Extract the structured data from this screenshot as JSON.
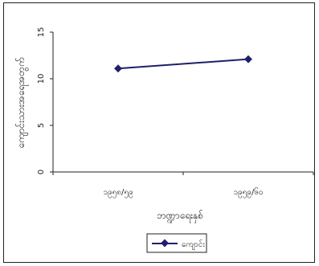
{
  "chart_data": {
    "type": "line",
    "title": "",
    "xlabel": "ဘဏ္ဍာရေးနှစ်",
    "ylabel": "ကျောင်းသားအရေအတွက်",
    "categories": [
      "၁၉၅၈/၅၉",
      "၁၉၅၉/၆၀"
    ],
    "series": [
      {
        "name": "ကျောင်း",
        "values": [
          11.1,
          12.1
        ],
        "color": "#1f1f6b"
      }
    ],
    "ylim": [
      0,
      15
    ],
    "yticks": [
      0,
      5,
      10,
      15
    ],
    "ytick_labels": [
      "0",
      "5",
      "10",
      "15"
    ],
    "grid": false,
    "legend": "bottom-center"
  }
}
